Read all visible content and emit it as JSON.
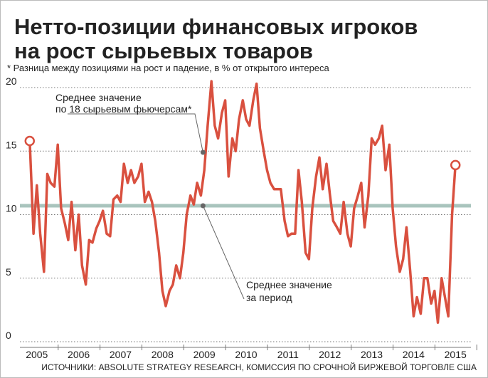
{
  "chart_data": {
    "type": "line",
    "title": [
      "Нетто-позиции финансовых игроков",
      "на рост сырьевых товаров"
    ],
    "subtitle": "* Разница между позициями на рост и падение, в % от открытого интереса",
    "source": "ИСТОЧНИКИ: ABSOLUTE STRATEGY RESEARCH, КОМИССИЯ ПО СРОЧНОЙ БИРЖЕВОЙ ТОРГОВЛЕ США",
    "annotations": [
      {
        "text": [
          "Среднее значение",
          "по 18 сырьевым фьючерсам*"
        ],
        "x": 2008.97,
        "y": 14.9
      },
      {
        "text": [
          "Среднее значение",
          "за период"
        ],
        "x": 2008.97,
        "y": 10.7
      }
    ],
    "mean": 10.7,
    "mean_color": "#a9c4bd",
    "x": [
      2004.83,
      2004.92,
      2005.0,
      2005.08,
      2005.17,
      2005.25,
      2005.33,
      2005.42,
      2005.5,
      2005.58,
      2005.67,
      2005.75,
      2005.83,
      2005.92,
      2006.0,
      2006.08,
      2006.17,
      2006.25,
      2006.33,
      2006.42,
      2006.5,
      2006.58,
      2006.67,
      2006.75,
      2006.83,
      2006.92,
      2007.0,
      2007.08,
      2007.17,
      2007.25,
      2007.33,
      2007.42,
      2007.5,
      2007.58,
      2007.67,
      2007.75,
      2007.83,
      2007.92,
      2008.0,
      2008.08,
      2008.17,
      2008.25,
      2008.33,
      2008.42,
      2008.5,
      2008.58,
      2008.67,
      2008.75,
      2008.83,
      2008.92,
      2009.0,
      2009.08,
      2009.17,
      2009.25,
      2009.33,
      2009.42,
      2009.5,
      2009.58,
      2009.67,
      2009.75,
      2009.83,
      2009.92,
      2010.0,
      2010.08,
      2010.17,
      2010.25,
      2010.33,
      2010.42,
      2010.5,
      2010.58,
      2010.67,
      2010.75,
      2010.83,
      2010.92,
      2011.0,
      2011.08,
      2011.17,
      2011.25,
      2011.33,
      2011.42,
      2011.5,
      2011.58,
      2011.67,
      2011.75,
      2011.83,
      2011.92,
      2012.0,
      2012.08,
      2012.17,
      2012.25,
      2012.33,
      2012.42,
      2012.5,
      2012.58,
      2012.67,
      2012.75,
      2012.83,
      2012.92,
      2013.0,
      2013.08,
      2013.17,
      2013.25,
      2013.33,
      2013.42,
      2013.5,
      2013.58,
      2013.67,
      2013.75,
      2013.83,
      2013.92,
      2014.0,
      2014.08,
      2014.17,
      2014.25,
      2014.33,
      2014.42,
      2014.5,
      2014.58,
      2014.67,
      2014.75,
      2014.83,
      2014.92,
      2015.0
    ],
    "series": [
      {
        "color": "#d9503f",
        "values": [
          15.8,
          8.5,
          12.3,
          8.5,
          5.5,
          13.2,
          12.5,
          12.2,
          15.5,
          10.5,
          9.3,
          8,
          11,
          7.2,
          10,
          6,
          4.5,
          8,
          7.8,
          8.9,
          9.5,
          10.3,
          8.5,
          8.3,
          11.2,
          11.5,
          11,
          14,
          12.5,
          13.5,
          12.5,
          13,
          14,
          11,
          11.8,
          11,
          9.5,
          7,
          4,
          2.8,
          4,
          4.5,
          6,
          5,
          7,
          10,
          11.5,
          10.8,
          12.5,
          11.5,
          13.5,
          17,
          20.5,
          17,
          16,
          18,
          19,
          13,
          16,
          15,
          17.5,
          19,
          17.5,
          17,
          19,
          20.3,
          16.8,
          15,
          13.5,
          12.5,
          12,
          12,
          12,
          9.5,
          8.3,
          8.5,
          8.5,
          13.5,
          11,
          7,
          6.5,
          10.5,
          13,
          14.5,
          12,
          14,
          11.6,
          9.5,
          9,
          8.5,
          11,
          8.5,
          7.5,
          10.5,
          11.5,
          12.5,
          9,
          11.5,
          16,
          15.5,
          16,
          17,
          13.5,
          15.5,
          10.5,
          7.5,
          5.5,
          6.5,
          9,
          5.5,
          2,
          3.5,
          2.2,
          5,
          5,
          3,
          4,
          1.5,
          5,
          3.5,
          2,
          10,
          13.9
        ]
      }
    ],
    "xlim": [
      2004.8,
      2015.2
    ],
    "xticks": [
      2005,
      2006,
      2007,
      2008,
      2009,
      2010,
      2011,
      2012,
      2013,
      2014,
      2015
    ],
    "ylim": [
      0,
      20
    ],
    "yticks": [
      0,
      5,
      10,
      15,
      20
    ],
    "grid": true
  }
}
